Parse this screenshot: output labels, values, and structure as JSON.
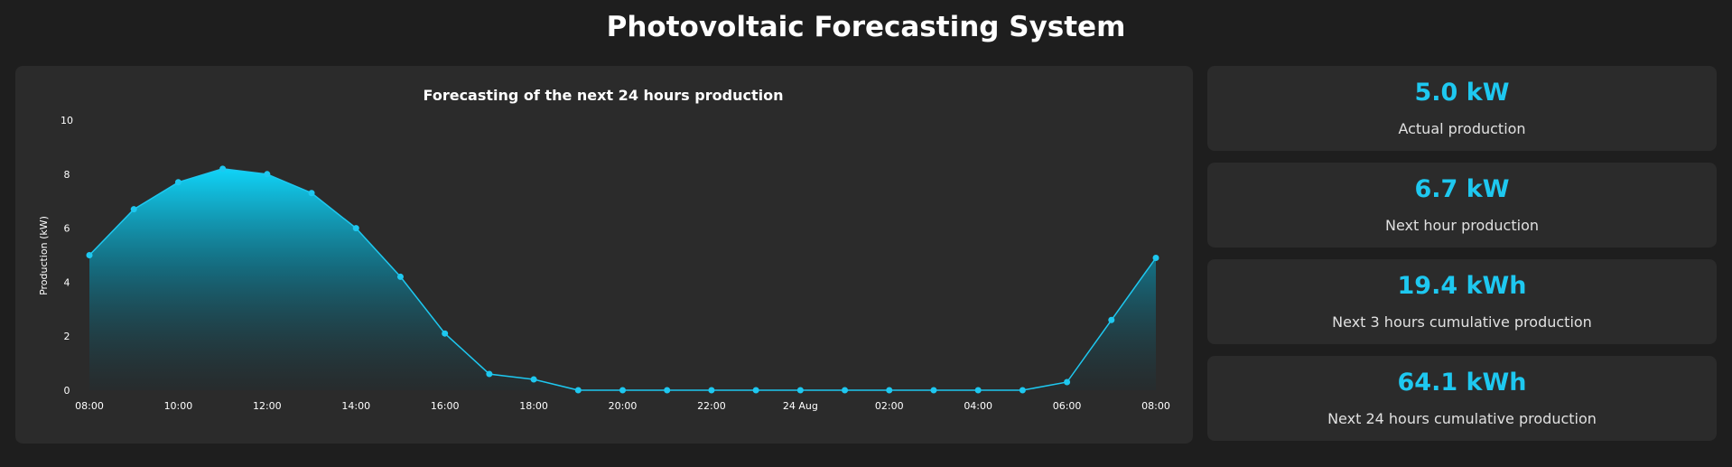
{
  "page": {
    "title": "Photovoltaic Forecasting System"
  },
  "colors": {
    "accent": "#1ec8f0",
    "background": "#1e1e1e",
    "card": "#2b2b2b"
  },
  "stats": [
    {
      "value": "5.0 kW",
      "label": "Actual production"
    },
    {
      "value": "6.7 kW",
      "label": "Next hour production"
    },
    {
      "value": "19.4 kWh",
      "label": "Next 3 hours cumulative production"
    },
    {
      "value": "64.1 kWh",
      "label": "Next 24 hours cumulative production"
    }
  ],
  "chart_data": {
    "type": "area",
    "title": "Forecasting of the next 24 hours production",
    "xlabel": "",
    "ylabel": "Production (kW)",
    "ylim": [
      0,
      10
    ],
    "yticks": [
      0,
      2,
      4,
      6,
      8,
      10
    ],
    "xtick_labels": [
      "08:00",
      "10:00",
      "12:00",
      "14:00",
      "16:00",
      "18:00",
      "20:00",
      "22:00",
      "24 Aug",
      "02:00",
      "04:00",
      "06:00",
      "08:00"
    ],
    "x": [
      "08:00",
      "09:00",
      "10:00",
      "11:00",
      "12:00",
      "13:00",
      "14:00",
      "15:00",
      "16:00",
      "17:00",
      "18:00",
      "19:00",
      "20:00",
      "21:00",
      "22:00",
      "23:00",
      "00:00",
      "01:00",
      "02:00",
      "03:00",
      "04:00",
      "05:00",
      "06:00",
      "07:00",
      "08:00"
    ],
    "values": [
      5.0,
      6.7,
      7.7,
      8.2,
      8.0,
      7.3,
      6.0,
      4.2,
      2.1,
      0.6,
      0.4,
      0.0,
      0.0,
      0.0,
      0.0,
      0.0,
      0.0,
      0.0,
      0.0,
      0.0,
      0.0,
      0.0,
      0.3,
      2.6,
      4.9
    ],
    "grid": false,
    "legend": "none"
  }
}
